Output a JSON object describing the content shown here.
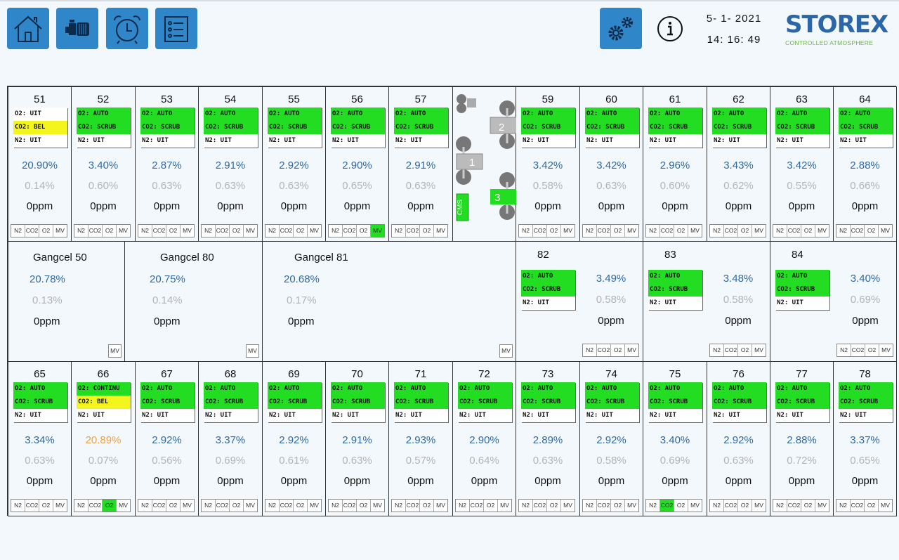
{
  "header": {
    "nav": [
      {
        "name": "home-icon"
      },
      {
        "name": "pump-icon"
      },
      {
        "name": "alarm-clock-icon"
      },
      {
        "name": "list-icon"
      }
    ],
    "settings_icon": "gears-icon",
    "info_icon": "info-icon",
    "date": "5-  1- 2021",
    "time": "14: 16: 49",
    "logo_brand": "STOREX",
    "logo_sub": "CONTROLLED ATMOSPHERE"
  },
  "colors": {
    "accent": "#2f86c9",
    "green": "#22dd22",
    "yellow": "#f5f51e",
    "o2_text": "#2e6aa5",
    "o2_alarm": "#f0a040",
    "co2_text": "#b3b3b3"
  },
  "buttons": [
    "N2",
    "CO2",
    "O2",
    "MV"
  ],
  "top_row": [
    {
      "id": "51",
      "o2_mode": "O2: UIT",
      "o2_state": "none",
      "co2_mode": "CO2: BEL",
      "co2_state": "yellow",
      "n2_mode": "N2:  UIT",
      "o2": "20.90%",
      "co2": "0.14%",
      "ppm": "0ppm",
      "active": ""
    },
    {
      "id": "52",
      "o2_mode": "O2:  AUTO",
      "o2_state": "green",
      "co2_mode": "CO2: SCRUB",
      "co2_state": "green",
      "n2_mode": "N2:  UIT",
      "o2": "3.40%",
      "co2": "0.60%",
      "ppm": "0ppm",
      "active": ""
    },
    {
      "id": "53",
      "o2_mode": "O2:  AUTO",
      "o2_state": "green",
      "co2_mode": "CO2: SCRUB",
      "co2_state": "green",
      "n2_mode": "N2:  UIT",
      "o2": "2.87%",
      "co2": "0.63%",
      "ppm": "0ppm",
      "active": ""
    },
    {
      "id": "54",
      "o2_mode": "O2:  AUTO",
      "o2_state": "green",
      "co2_mode": "CO2: SCRUB",
      "co2_state": "green",
      "n2_mode": "N2:  UIT",
      "o2": "2.91%",
      "co2": "0.63%",
      "ppm": "0ppm",
      "active": ""
    },
    {
      "id": "55",
      "o2_mode": "O2:  AUTO",
      "o2_state": "green",
      "co2_mode": "CO2: SCRUB",
      "co2_state": "green",
      "n2_mode": "N2:  UIT",
      "o2": "2.92%",
      "co2": "0.63%",
      "ppm": "0ppm",
      "active": ""
    },
    {
      "id": "56",
      "o2_mode": "O2:  AUTO",
      "o2_state": "green",
      "co2_mode": "CO2: SCRUB",
      "co2_state": "green",
      "n2_mode": "N2:  UIT",
      "o2": "2.90%",
      "co2": "0.65%",
      "ppm": "0ppm",
      "active": "MV"
    },
    {
      "id": "57",
      "o2_mode": "O2:  AUTO",
      "o2_state": "green",
      "co2_mode": "CO2: SCRUB",
      "co2_state": "green",
      "n2_mode": "N2:  UIT",
      "o2": "2.91%",
      "co2": "0.63%",
      "ppm": "0ppm",
      "active": ""
    },
    null,
    {
      "id": "59",
      "o2_mode": "O2:  AUTO",
      "o2_state": "green",
      "co2_mode": "CO2: SCRUB",
      "co2_state": "green",
      "n2_mode": "N2:  UIT",
      "o2": "3.42%",
      "co2": "0.58%",
      "ppm": "0ppm",
      "active": ""
    },
    {
      "id": "60",
      "o2_mode": "O2:  AUTO",
      "o2_state": "green",
      "co2_mode": "CO2: SCRUB",
      "co2_state": "green",
      "n2_mode": "N2:  UIT",
      "o2": "3.42%",
      "co2": "0.63%",
      "ppm": "0ppm",
      "active": ""
    },
    {
      "id": "61",
      "o2_mode": "O2:  AUTO",
      "o2_state": "green",
      "co2_mode": "CO2: SCRUB",
      "co2_state": "green",
      "n2_mode": "N2:  UIT",
      "o2": "2.96%",
      "co2": "0.60%",
      "ppm": "0ppm",
      "active": ""
    },
    {
      "id": "62",
      "o2_mode": "O2:  AUTO",
      "o2_state": "green",
      "co2_mode": "CO2: SCRUB",
      "co2_state": "green",
      "n2_mode": "N2:  UIT",
      "o2": "3.43%",
      "co2": "0.62%",
      "ppm": "0ppm",
      "active": ""
    },
    {
      "id": "63",
      "o2_mode": "O2:  AUTO",
      "o2_state": "green",
      "co2_mode": "CO2: SCRUB",
      "co2_state": "green",
      "n2_mode": "N2:  UIT",
      "o2": "3.42%",
      "co2": "0.55%",
      "ppm": "0ppm",
      "active": ""
    },
    {
      "id": "64",
      "o2_mode": "O2:  AUTO",
      "o2_state": "green",
      "co2_mode": "CO2: SCRUB",
      "co2_state": "green",
      "n2_mode": "N2:  UIT",
      "o2": "2.88%",
      "co2": "0.66%",
      "ppm": "0ppm",
      "active": ""
    }
  ],
  "machine": {
    "units": [
      "1",
      "2",
      "3"
    ],
    "cms_label": "CMS",
    "active_unit": "3"
  },
  "corridors": [
    {
      "name": "Gangcel 50",
      "o2": "20.78%",
      "co2": "0.13%",
      "ppm": "0ppm"
    },
    {
      "name": "Gangcel 80",
      "o2": "20.75%",
      "co2": "0.14%",
      "ppm": "0ppm"
    },
    {
      "name": "Gangcel 81",
      "o2": "20.68%",
      "co2": "0.17%",
      "ppm": "0ppm"
    }
  ],
  "mid_rooms": [
    {
      "id": "82",
      "o2_mode": "O2:  AUTO",
      "o2_state": "green",
      "co2_mode": "CO2: SCRUB",
      "co2_state": "green",
      "n2_mode": "N2:  UIT",
      "o2": "3.49%",
      "co2": "0.58%",
      "ppm": "0ppm",
      "active": ""
    },
    {
      "id": "83",
      "o2_mode": "O2:  AUTO",
      "o2_state": "green",
      "co2_mode": "CO2: SCRUB",
      "co2_state": "green",
      "n2_mode": "N2:  UIT",
      "o2": "3.48%",
      "co2": "0.58%",
      "ppm": "0ppm",
      "active": ""
    },
    {
      "id": "84",
      "o2_mode": "O2:  AUTO",
      "o2_state": "green",
      "co2_mode": "CO2: SCRUB",
      "co2_state": "green",
      "n2_mode": "N2:  UIT",
      "o2": "3.40%",
      "co2": "0.69%",
      "ppm": "0ppm",
      "active": ""
    }
  ],
  "bottom_row": [
    {
      "id": "65",
      "o2_mode": "O2:  AUTO",
      "o2_state": "green",
      "co2_mode": "CO2: SCRUB",
      "co2_state": "green",
      "n2_mode": "N2:  UIT",
      "o2": "3.34%",
      "co2": "0.63%",
      "ppm": "0ppm",
      "active": ""
    },
    {
      "id": "66",
      "o2_mode": "O2: CONTINU",
      "o2_state": "green",
      "co2_mode": "CO2: BEL",
      "co2_state": "yellow",
      "n2_mode": "N2:  UIT",
      "o2": "20.89%",
      "o2_alarm": true,
      "co2": "0.07%",
      "ppm": "0ppm",
      "active": "O2"
    },
    {
      "id": "67",
      "o2_mode": "O2:  AUTO",
      "o2_state": "green",
      "co2_mode": "CO2: SCRUB",
      "co2_state": "green",
      "n2_mode": "N2:  UIT",
      "o2": "2.92%",
      "co2": "0.56%",
      "ppm": "0ppm",
      "active": ""
    },
    {
      "id": "68",
      "o2_mode": "O2:  AUTO",
      "o2_state": "green",
      "co2_mode": "CO2: SCRUB",
      "co2_state": "green",
      "n2_mode": "N2:  UIT",
      "o2": "3.37%",
      "co2": "0.69%",
      "ppm": "0ppm",
      "active": ""
    },
    {
      "id": "69",
      "o2_mode": "O2:  AUTO",
      "o2_state": "green",
      "co2_mode": "CO2: SCRUB",
      "co2_state": "green",
      "n2_mode": "N2:  UIT",
      "o2": "2.92%",
      "co2": "0.61%",
      "ppm": "0ppm",
      "active": ""
    },
    {
      "id": "70",
      "o2_mode": "O2:  AUTO",
      "o2_state": "green",
      "co2_mode": "CO2: SCRUB",
      "co2_state": "green",
      "n2_mode": "N2:  UIT",
      "o2": "2.91%",
      "co2": "0.63%",
      "ppm": "0ppm",
      "active": ""
    },
    {
      "id": "71",
      "o2_mode": "O2:  AUTO",
      "o2_state": "green",
      "co2_mode": "CO2: SCRUB",
      "co2_state": "green",
      "n2_mode": "N2:  UIT",
      "o2": "2.93%",
      "co2": "0.57%",
      "ppm": "0ppm",
      "active": ""
    },
    {
      "id": "72",
      "o2_mode": "O2:  AUTO",
      "o2_state": "green",
      "co2_mode": "CO2: SCRUB",
      "co2_state": "green",
      "n2_mode": "N2:  UIT",
      "o2": "2.90%",
      "co2": "0.64%",
      "ppm": "0ppm",
      "active": ""
    },
    {
      "id": "73",
      "o2_mode": "O2:  AUTO",
      "o2_state": "green",
      "co2_mode": "CO2: SCRUB",
      "co2_state": "green",
      "n2_mode": "N2:  UIT",
      "o2": "2.89%",
      "co2": "0.63%",
      "ppm": "0ppm",
      "active": ""
    },
    {
      "id": "74",
      "o2_mode": "O2:  AUTO",
      "o2_state": "green",
      "co2_mode": "CO2: SCRUB",
      "co2_state": "green",
      "n2_mode": "N2:  UIT",
      "o2": "2.92%",
      "co2": "0.58%",
      "ppm": "0ppm",
      "active": ""
    },
    {
      "id": "75",
      "o2_mode": "O2:  AUTO",
      "o2_state": "green",
      "co2_mode": "CO2: SCRUB",
      "co2_state": "green",
      "n2_mode": "N2:  UIT",
      "o2": "3.40%",
      "co2": "0.69%",
      "ppm": "0ppm",
      "active": "CO2"
    },
    {
      "id": "76",
      "o2_mode": "O2:  AUTO",
      "o2_state": "green",
      "co2_mode": "CO2: SCRUB",
      "co2_state": "green",
      "n2_mode": "N2:  UIT",
      "o2": "2.92%",
      "co2": "0.63%",
      "ppm": "0ppm",
      "active": ""
    },
    {
      "id": "77",
      "o2_mode": "O2:  AUTO",
      "o2_state": "green",
      "co2_mode": "CO2: SCRUB",
      "co2_state": "green",
      "n2_mode": "N2:  UIT",
      "o2": "2.88%",
      "co2": "0.72%",
      "ppm": "0ppm",
      "active": ""
    },
    {
      "id": "78",
      "o2_mode": "O2:  AUTO",
      "o2_state": "green",
      "co2_mode": "CO2: SCRUB",
      "co2_state": "green",
      "n2_mode": "N2:  UIT",
      "o2": "3.37%",
      "co2": "0.65%",
      "ppm": "0ppm",
      "active": ""
    }
  ]
}
